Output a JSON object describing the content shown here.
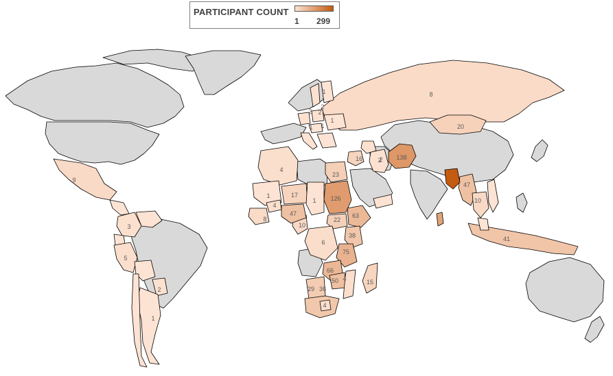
{
  "legend": {
    "title": "PARTICIPANT COUNT",
    "min_label": "1",
    "max_label": "299",
    "min_value": 1,
    "max_value": 299,
    "color_low": "#fde3d3",
    "color_high": "#c55a11"
  },
  "colors": {
    "no_data": "#d9d9d9",
    "border": "#000000",
    "label": "#595959"
  },
  "regions": [
    {
      "name": "Russia",
      "value": 8
    },
    {
      "name": "Mongolia",
      "value": 20
    },
    {
      "name": "Afghanistan",
      "value": 138
    },
    {
      "name": "Pakistan",
      "value": 2
    },
    {
      "name": "Syria",
      "value": 16
    },
    {
      "name": "Egypt",
      "value": 23
    },
    {
      "name": "Sudan",
      "value": 126
    },
    {
      "name": "South Sudan",
      "value": 22
    },
    {
      "name": "Ethiopia",
      "value": 63
    },
    {
      "name": "Kenya",
      "value": 38
    },
    {
      "name": "Tanzania",
      "value": 75
    },
    {
      "name": "Zambia",
      "value": 66
    },
    {
      "name": "Zimbabwe",
      "value": 50
    },
    {
      "name": "Mozambique",
      "value": 4
    },
    {
      "name": "Botswana",
      "value": 29
    },
    {
      "name": "South Africa",
      "value": 36
    },
    {
      "name": "Lesotho",
      "value": 4
    },
    {
      "name": "Madagascar",
      "value": 15
    },
    {
      "name": "DR Congo",
      "value": 6
    },
    {
      "name": "Cameroon",
      "value": 10
    },
    {
      "name": "Nigeria",
      "value": 47
    },
    {
      "name": "Niger",
      "value": 17
    },
    {
      "name": "Chad",
      "value": 1
    },
    {
      "name": "Algeria",
      "value": 4
    },
    {
      "name": "Mali",
      "value": 1
    },
    {
      "name": "Burkina Faso",
      "value": 4
    },
    {
      "name": "Guinea",
      "value": 8
    },
    {
      "name": "Myanmar",
      "value": 47
    },
    {
      "name": "Thailand",
      "value": 10
    },
    {
      "name": "Indonesia",
      "value": 41
    },
    {
      "name": "Mexico",
      "value": 9
    },
    {
      "name": "Colombia",
      "value": 3
    },
    {
      "name": "Peru",
      "value": 5
    },
    {
      "name": "Paraguay",
      "value": 2
    },
    {
      "name": "Argentina",
      "value": 1
    },
    {
      "name": "Bangladesh",
      "value": 299
    },
    {
      "name": "Sri Lanka",
      "value": null
    },
    {
      "name": "Iraq",
      "value": 2
    },
    {
      "name": "Germany",
      "value": 2
    },
    {
      "name": "Poland",
      "value": 2
    },
    {
      "name": "Ukraine",
      "value": 1
    },
    {
      "name": "Italy",
      "value": 1
    },
    {
      "name": "Hungary",
      "value": 1
    },
    {
      "name": "Sweden",
      "value": 2
    },
    {
      "name": "Finland",
      "value": 1
    }
  ]
}
